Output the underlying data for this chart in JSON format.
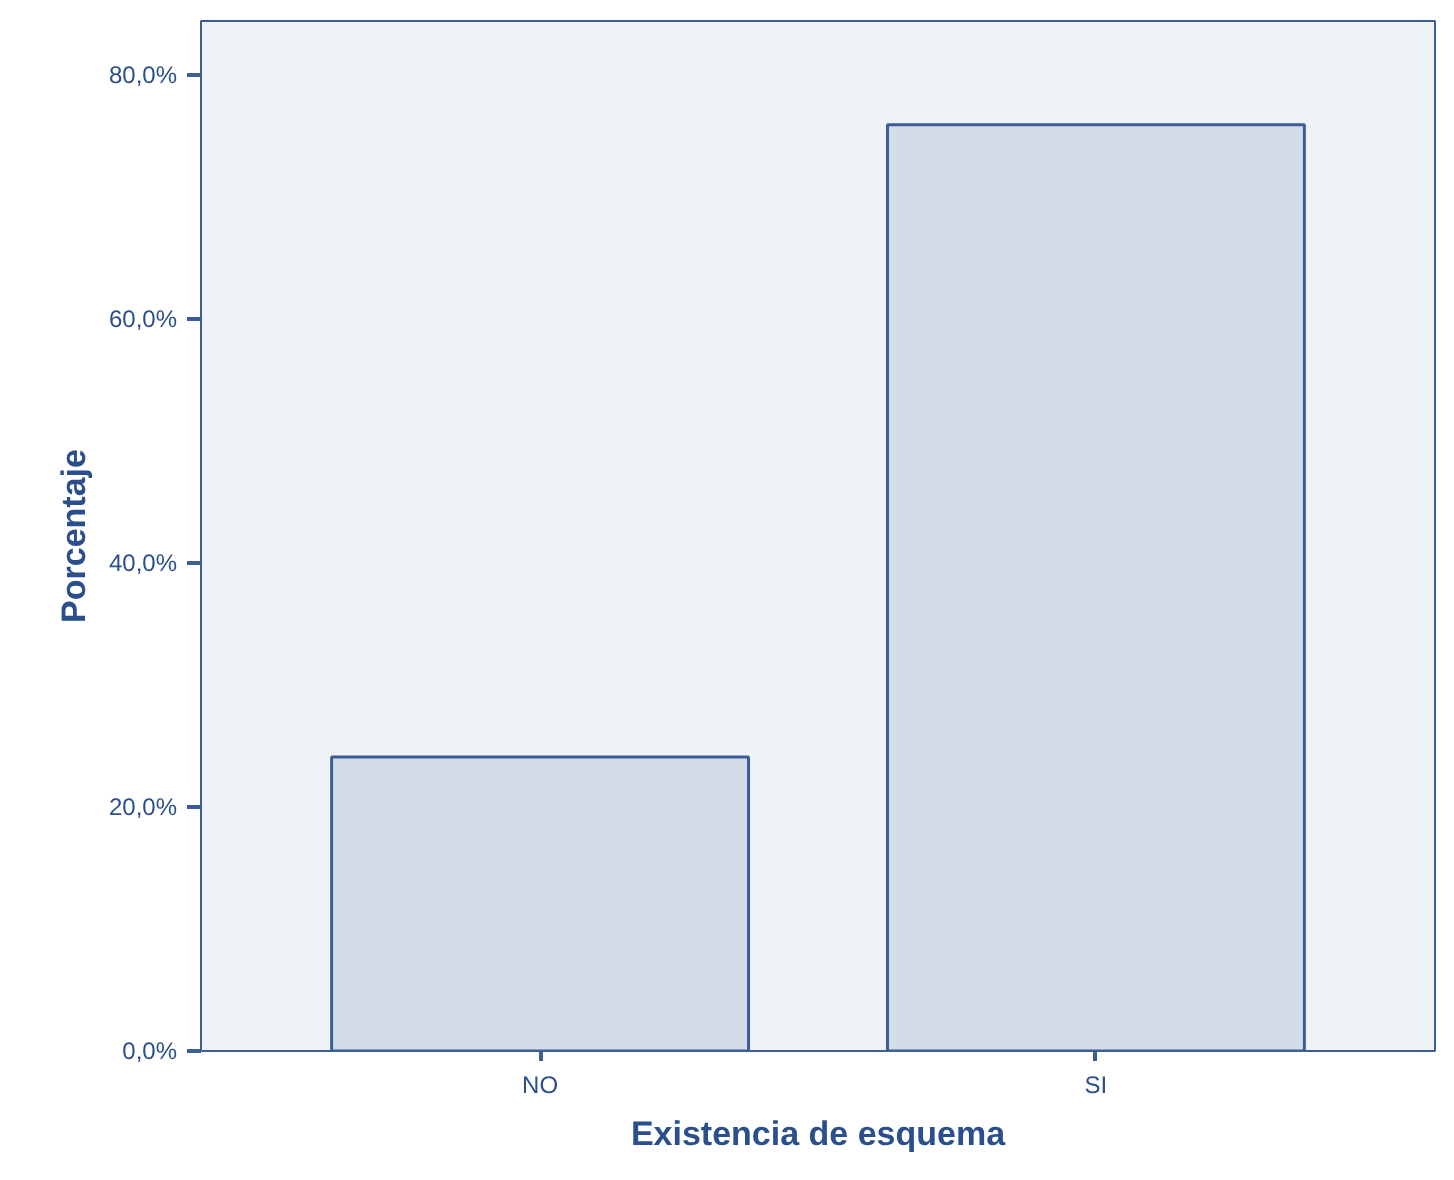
{
  "chart_data": {
    "type": "bar",
    "xlabel": "Existencia de esquema",
    "ylabel": "Porcentaje",
    "categories": [
      "NO",
      "SI"
    ],
    "values": [
      24.1,
      75.9
    ],
    "color": "#d3dde8",
    "ylim": [
      0,
      84.4
    ],
    "yticks": [
      {
        "value": 0,
        "label": "0,0%"
      },
      {
        "value": 20,
        "label": "20,0%"
      },
      {
        "value": 40,
        "label": "40,0%"
      },
      {
        "value": 60,
        "label": "60,0%"
      },
      {
        "value": 80,
        "label": "80,0%"
      }
    ],
    "grid": false
  }
}
